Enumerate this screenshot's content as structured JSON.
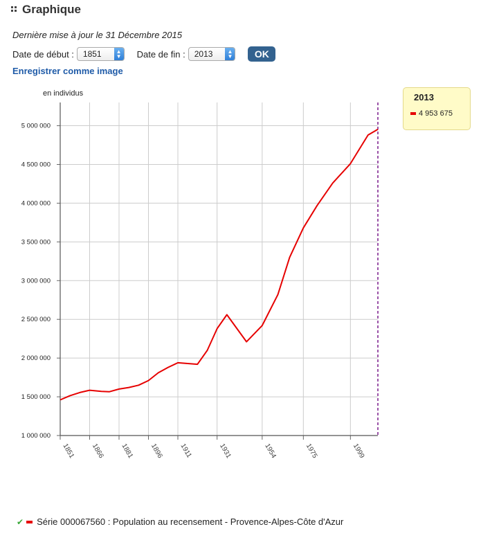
{
  "header": {
    "title": "Graphique"
  },
  "updated_text": "Dernière mise à jour le 31 Décembre 2015",
  "controls": {
    "start_label": "Date de début :",
    "start_value": "1851",
    "end_label": "Date de fin :",
    "end_value": "2013",
    "ok_label": "OK"
  },
  "save_label": "Enregistrer comme image",
  "tooltip": {
    "year": "2013",
    "value": "4 953 675"
  },
  "series_caption": "Série 000067560 : Population au recensement - Provence-Alpes-Côte d'Azur",
  "colors": {
    "series": "#e60000",
    "marker": "#7a1a8c",
    "grid": "#cccccc"
  },
  "chart_data": {
    "type": "line",
    "ylabel": "en individus",
    "ylim": [
      1000000,
      5300000
    ],
    "xlim": [
      1851,
      2013
    ],
    "yticks": [
      1000000,
      1500000,
      2000000,
      2500000,
      3000000,
      3500000,
      4000000,
      4500000,
      5000000
    ],
    "ytick_labels": [
      "1 000 000",
      "1 500 000",
      "2 000 000",
      "2 500 000",
      "3 000 000",
      "3 500 000",
      "4 000 000",
      "4 500 000",
      "5 000 000"
    ],
    "xticks": [
      1851,
      1866,
      1881,
      1896,
      1911,
      1931,
      1954,
      1975,
      1999
    ],
    "xtick_labels": [
      "1851",
      "1866",
      "1881",
      "1896",
      "1911",
      "1931",
      "1954",
      "1975",
      "1999"
    ],
    "grid": true,
    "highlight_x": 2013,
    "series": [
      {
        "x": [
          1851,
          1856,
          1861,
          1866,
          1872,
          1876,
          1881,
          1886,
          1891,
          1896,
          1901,
          1906,
          1911,
          1921,
          1926,
          1931,
          1936,
          1946,
          1954,
          1962,
          1968,
          1975,
          1982,
          1990,
          1999,
          2008,
          2013
        ],
        "values": [
          1460000,
          1515000,
          1555000,
          1585000,
          1570000,
          1565000,
          1600000,
          1620000,
          1650000,
          1710000,
          1810000,
          1880000,
          1940000,
          1920000,
          2100000,
          2380000,
          2560000,
          2210000,
          2420000,
          2820000,
          3300000,
          3680000,
          3970000,
          4260000,
          4510000,
          4880000,
          4953675
        ]
      }
    ]
  }
}
